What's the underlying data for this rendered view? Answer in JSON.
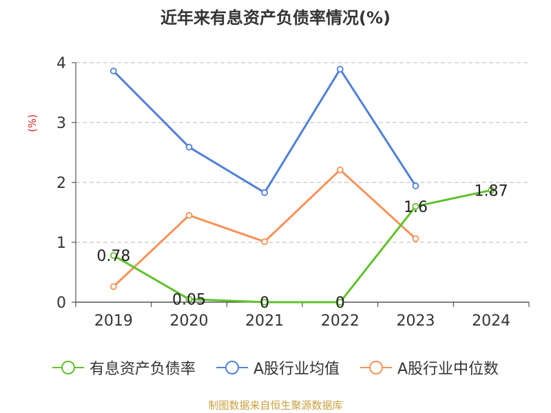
{
  "chart_data": {
    "type": "line",
    "title": "近年来有息资产负债率情况(%)",
    "ylabel": "(%)",
    "categories": [
      "2019",
      "2020",
      "2021",
      "2022",
      "2023",
      "2024"
    ],
    "ylim": [
      0,
      4
    ],
    "yticks": [
      "0",
      "1",
      "2",
      "3",
      "4"
    ],
    "grid": true,
    "legend_position": "bottom",
    "series": [
      {
        "name": "有息资产负债率",
        "color": "#5fc12a",
        "values": [
          0.78,
          0.05,
          0,
          0,
          1.6,
          1.87
        ],
        "labels": [
          "0.78",
          "0.05",
          "0",
          "0",
          "1.6",
          "1.87"
        ]
      },
      {
        "name": "A股行业均值",
        "color": "#4f7fd8",
        "values": [
          3.86,
          2.59,
          1.83,
          3.89,
          1.94,
          null
        ]
      },
      {
        "name": "A股行业中位数",
        "color": "#f79257",
        "values": [
          0.26,
          1.45,
          1.01,
          2.21,
          1.06,
          null
        ]
      }
    ]
  },
  "source": "制图数据来自恒生聚源数据库"
}
